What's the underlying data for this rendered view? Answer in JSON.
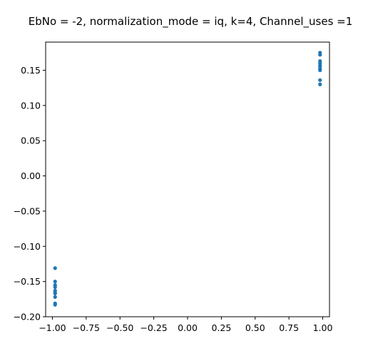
{
  "chart_data": {
    "type": "scatter",
    "title": "EbNo = -2, normalization_mode = iq, k=4, Channel_uses =1",
    "xlabel": "",
    "ylabel": "",
    "xlim": [
      -1.05,
      1.05
    ],
    "ylim": [
      -0.2,
      0.19
    ],
    "x_ticks": [
      -1.0,
      -0.75,
      -0.5,
      -0.25,
      0.0,
      0.25,
      0.5,
      0.75,
      1.0
    ],
    "x_tick_labels": [
      "−1.00",
      "−0.75",
      "−0.50",
      "−0.25",
      "0.00",
      "0.25",
      "0.50",
      "0.75",
      "1.00"
    ],
    "y_ticks": [
      -0.2,
      -0.15,
      -0.1,
      -0.05,
      0.0,
      0.05,
      0.1,
      0.15
    ],
    "y_tick_labels": [
      "−0.20",
      "−0.15",
      "−0.10",
      "−0.05",
      "0.00",
      "0.05",
      "0.10",
      "0.15"
    ],
    "grid": false,
    "color": "#1f77b4",
    "series": [
      {
        "x": [
          0.98,
          0.98,
          0.98,
          0.98,
          0.98,
          0.98,
          0.98,
          0.98,
          0.98,
          0.98,
          -0.98,
          -0.98,
          -0.98,
          -0.98,
          -0.98,
          -0.98,
          -0.98,
          -0.98,
          -0.98,
          -0.98
        ],
        "y": [
          0.175,
          0.172,
          0.163,
          0.16,
          0.155,
          0.152,
          0.15,
          0.136,
          0.13,
          0.157,
          -0.131,
          -0.15,
          -0.155,
          -0.163,
          -0.166,
          -0.167,
          -0.172,
          -0.181,
          -0.183,
          -0.158
        ]
      }
    ]
  }
}
